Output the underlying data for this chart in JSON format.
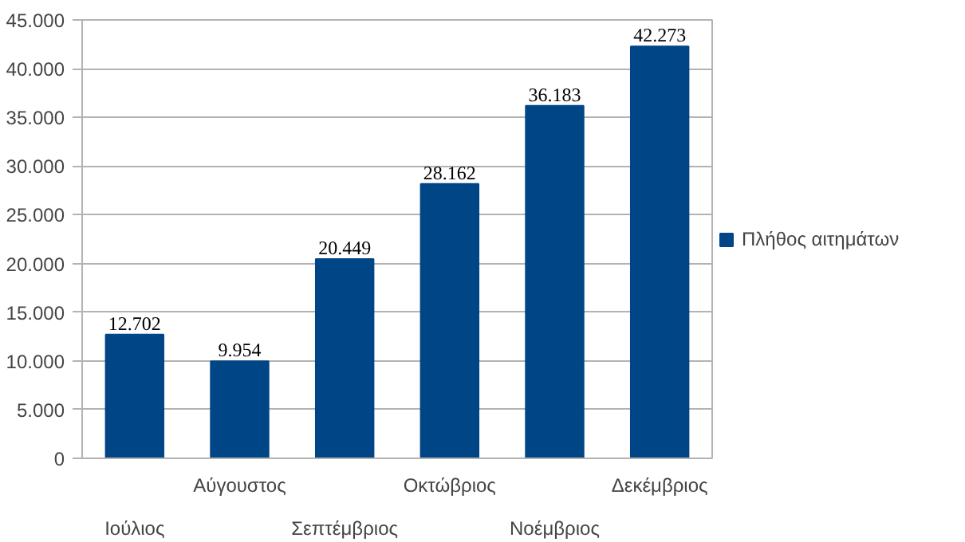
{
  "chart_data": {
    "type": "bar",
    "categories": [
      "Ιούλιος",
      "Αύγουστος",
      "Σεπτέμβριος",
      "Οκτώβριος",
      "Νοέμβριος",
      "Δεκέμβριος"
    ],
    "series": [
      {
        "name": "Πλήθος αιτημάτων",
        "color": "#004586",
        "values": [
          12702,
          9954,
          20449,
          28162,
          36183,
          42273
        ]
      }
    ],
    "value_labels": [
      "12.702",
      "9.954",
      "20.449",
      "28.162",
      "36.183",
      "42.273"
    ],
    "ylim": [
      0,
      45000
    ],
    "yticks": [
      {
        "value": 0,
        "label": "0"
      },
      {
        "value": 5000,
        "label": "5.000"
      },
      {
        "value": 10000,
        "label": "10.000"
      },
      {
        "value": 15000,
        "label": "15.000"
      },
      {
        "value": 20000,
        "label": "20.000"
      },
      {
        "value": 25000,
        "label": "25.000"
      },
      {
        "value": 30000,
        "label": "30.000"
      },
      {
        "value": 35000,
        "label": "35.000"
      },
      {
        "value": 40000,
        "label": "40.000"
      },
      {
        "value": 45000,
        "label": "45.000"
      }
    ],
    "grid": "y",
    "legend": "right"
  }
}
